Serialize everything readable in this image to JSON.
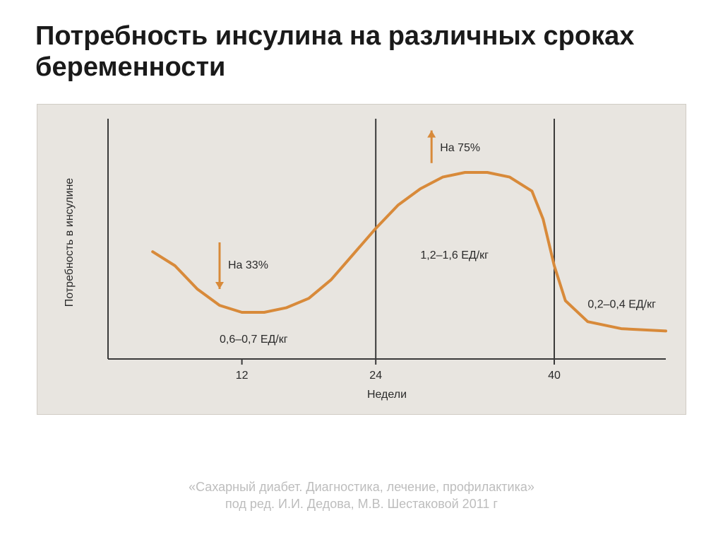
{
  "title": "Потребность инсулина на различных сроках беременности",
  "chart": {
    "type": "line",
    "background_color": "#e8e5e0",
    "plot_border_color": "#3a3a3a",
    "plot_border_width": 2,
    "curve_color": "#d88a3a",
    "curve_width": 4,
    "axis_font_size": 16,
    "label_font_size": 16,
    "axis_color": "#3a3a3a",
    "text_color": "#2a2a2a",
    "y_axis_label": "Потребность в инсулине",
    "x_axis_label": "Недели",
    "x_ticks": [
      12,
      24,
      40
    ],
    "x_range": [
      0,
      50
    ],
    "y_range": [
      0,
      100
    ],
    "verticals": [
      24,
      40
    ],
    "curve_points": [
      [
        4,
        46
      ],
      [
        6,
        40
      ],
      [
        8,
        30
      ],
      [
        10,
        23
      ],
      [
        12,
        20
      ],
      [
        14,
        20
      ],
      [
        16,
        22
      ],
      [
        18,
        26
      ],
      [
        20,
        34
      ],
      [
        22,
        45
      ],
      [
        24,
        56
      ],
      [
        26,
        66
      ],
      [
        28,
        73
      ],
      [
        30,
        78
      ],
      [
        32,
        80
      ],
      [
        34,
        80
      ],
      [
        36,
        78
      ],
      [
        38,
        72
      ],
      [
        39,
        60
      ],
      [
        40,
        40
      ],
      [
        41,
        25
      ],
      [
        43,
        16
      ],
      [
        46,
        13
      ],
      [
        50,
        12
      ]
    ],
    "annotations": {
      "arrow_down_label": "На 33%",
      "arrow_up_label": "На 75%",
      "range_label_1": "0,6–0,7 ЕД/кг",
      "range_label_2": "1,2–1,6 ЕД/кг",
      "range_label_3": "0,2–0,4 ЕД/кг"
    },
    "arrow_color": "#d88a3a"
  },
  "citation_line1": "«Сахарный диабет. Диагностика, лечение, профилактика»",
  "citation_line2": "под ред. И.И. Дедова, М.В. Шестаковой 2011 г"
}
